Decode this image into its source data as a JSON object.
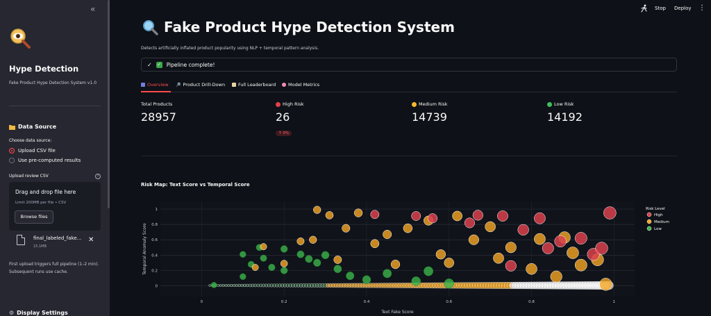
{
  "sidebar": {
    "title": "Hype Detection",
    "subtitle": "Fake Product Hype Detection System v1.0",
    "data_source_heading": "Data Source",
    "choose_label": "Choose data source:",
    "options": [
      "Upload CSV file",
      "Use pre-computed results"
    ],
    "selected_option": 0,
    "upload_label": "Upload review CSV",
    "dropzone_title": "Drag and drop file here",
    "dropzone_limit": "Limit 200MB per file • CSV",
    "browse_label": "Browse files",
    "file_name": "final_labeled_fake...",
    "file_size": "15.1MB",
    "note": "First upload triggers full pipeline (1–2 min). Subsequent runs use cache.",
    "display_heading": "Display Settings"
  },
  "header": {
    "stop_label": "Stop",
    "deploy_label": "Deploy"
  },
  "main": {
    "title": "Fake Product Hype Detection System",
    "description": "Detects artificially inflated product popularity using NLP + temporal pattern analysis.",
    "alert": "Pipeline complete!",
    "tabs": [
      "Overview",
      "Product Drill-Down",
      "Full Leaderboard",
      "Model Metrics"
    ],
    "active_tab": 0,
    "metrics": {
      "total": {
        "label": "Total Products",
        "value": "28957"
      },
      "high": {
        "label": "High Risk",
        "value": "26",
        "delta": "↑ 0%"
      },
      "medium": {
        "label": "Medium Risk",
        "value": "14739"
      },
      "low": {
        "label": "Low Risk",
        "value": "14192"
      }
    },
    "chart_heading": "Risk Map: Text Score vs Temporal Score"
  },
  "colors": {
    "accent": "#ff4b4b",
    "high": "#d9414c",
    "medium": "#f5a623",
    "low": "#3cb44b",
    "bg": "#0e1117",
    "sidebar": "#262730"
  },
  "chart_data": {
    "type": "scatter",
    "xlabel": "Text Fake Score",
    "ylabel": "Temporal Anomaly Score",
    "xlim": [
      -0.1,
      1.05
    ],
    "ylim": [
      -0.14,
      1.1
    ],
    "xticks": [
      "0",
      "0.2",
      "0.4",
      "0.6",
      "0.8",
      "1"
    ],
    "yticks": [
      "0",
      "0.2",
      "0.4",
      "0.6",
      "0.8",
      "1"
    ],
    "legend_title": "Risk Level",
    "legend_position": "right",
    "series": [
      {
        "name": "High",
        "color": "#d9414c",
        "points": [
          [
            0.67,
            0.92
          ],
          [
            0.73,
            0.91
          ],
          [
            0.99,
            0.95
          ],
          [
            0.95,
            0.41
          ],
          [
            0.78,
            0.73
          ],
          [
            0.56,
            0.88
          ],
          [
            0.84,
            0.49
          ],
          [
            0.75,
            0.26
          ],
          [
            0.87,
            0.58
          ],
          [
            0.92,
            0.62
          ],
          [
            0.52,
            0.91
          ],
          [
            0.42,
            0.93
          ],
          [
            0.65,
            0.82
          ],
          [
            0.82,
            0.88
          ],
          [
            0.97,
            0.49
          ]
        ]
      },
      {
        "name": "Medium",
        "color": "#f5a623",
        "points": [
          [
            0.15,
            0.51
          ],
          [
            0.24,
            0.58
          ],
          [
            0.28,
            0.99
          ],
          [
            0.31,
            0.92
          ],
          [
            0.45,
            0.67
          ],
          [
            0.58,
            0.41
          ],
          [
            0.72,
            0.36
          ],
          [
            0.9,
            0.43
          ],
          [
            0.96,
            0.34
          ],
          [
            0.98,
            0.02
          ],
          [
            0.8,
            0.22
          ],
          [
            0.55,
            0.85
          ],
          [
            0.35,
            0.75
          ],
          [
            0.42,
            0.55
          ],
          [
            0.66,
            0.6
          ],
          [
            0.88,
            0.63
          ],
          [
            0.92,
            0.27
          ],
          [
            0.47,
            0.28
          ],
          [
            0.2,
            0.29
          ],
          [
            0.13,
            0.24
          ],
          [
            0.62,
            0.91
          ],
          [
            0.7,
            0.77
          ],
          [
            0.82,
            0.61
          ],
          [
            0.38,
            0.95
          ],
          [
            0.5,
            0.75
          ],
          [
            0.6,
            0.3
          ],
          [
            0.75,
            0.5
          ],
          [
            0.86,
            0.12
          ],
          [
            0.33,
            0.34
          ],
          [
            0.27,
            0.6
          ]
        ]
      },
      {
        "name": "Low",
        "color": "#3cb44b",
        "points": [
          [
            0.03,
            0.01
          ],
          [
            0.1,
            0.12
          ],
          [
            0.1,
            0.41
          ],
          [
            0.12,
            0.28
          ],
          [
            0.15,
            0.36
          ],
          [
            0.2,
            0.48
          ],
          [
            0.2,
            0.2
          ],
          [
            0.24,
            0.41
          ],
          [
            0.28,
            0.3
          ],
          [
            0.33,
            0.22
          ],
          [
            0.36,
            0.13
          ],
          [
            0.4,
            0.08
          ],
          [
            0.45,
            0.16
          ],
          [
            0.52,
            0.06
          ],
          [
            0.55,
            0.19
          ],
          [
            0.6,
            0.03
          ],
          [
            0.17,
            0.24
          ],
          [
            0.26,
            0.35
          ],
          [
            0.3,
            0.4
          ],
          [
            0.14,
            0.5
          ]
        ]
      }
    ]
  }
}
